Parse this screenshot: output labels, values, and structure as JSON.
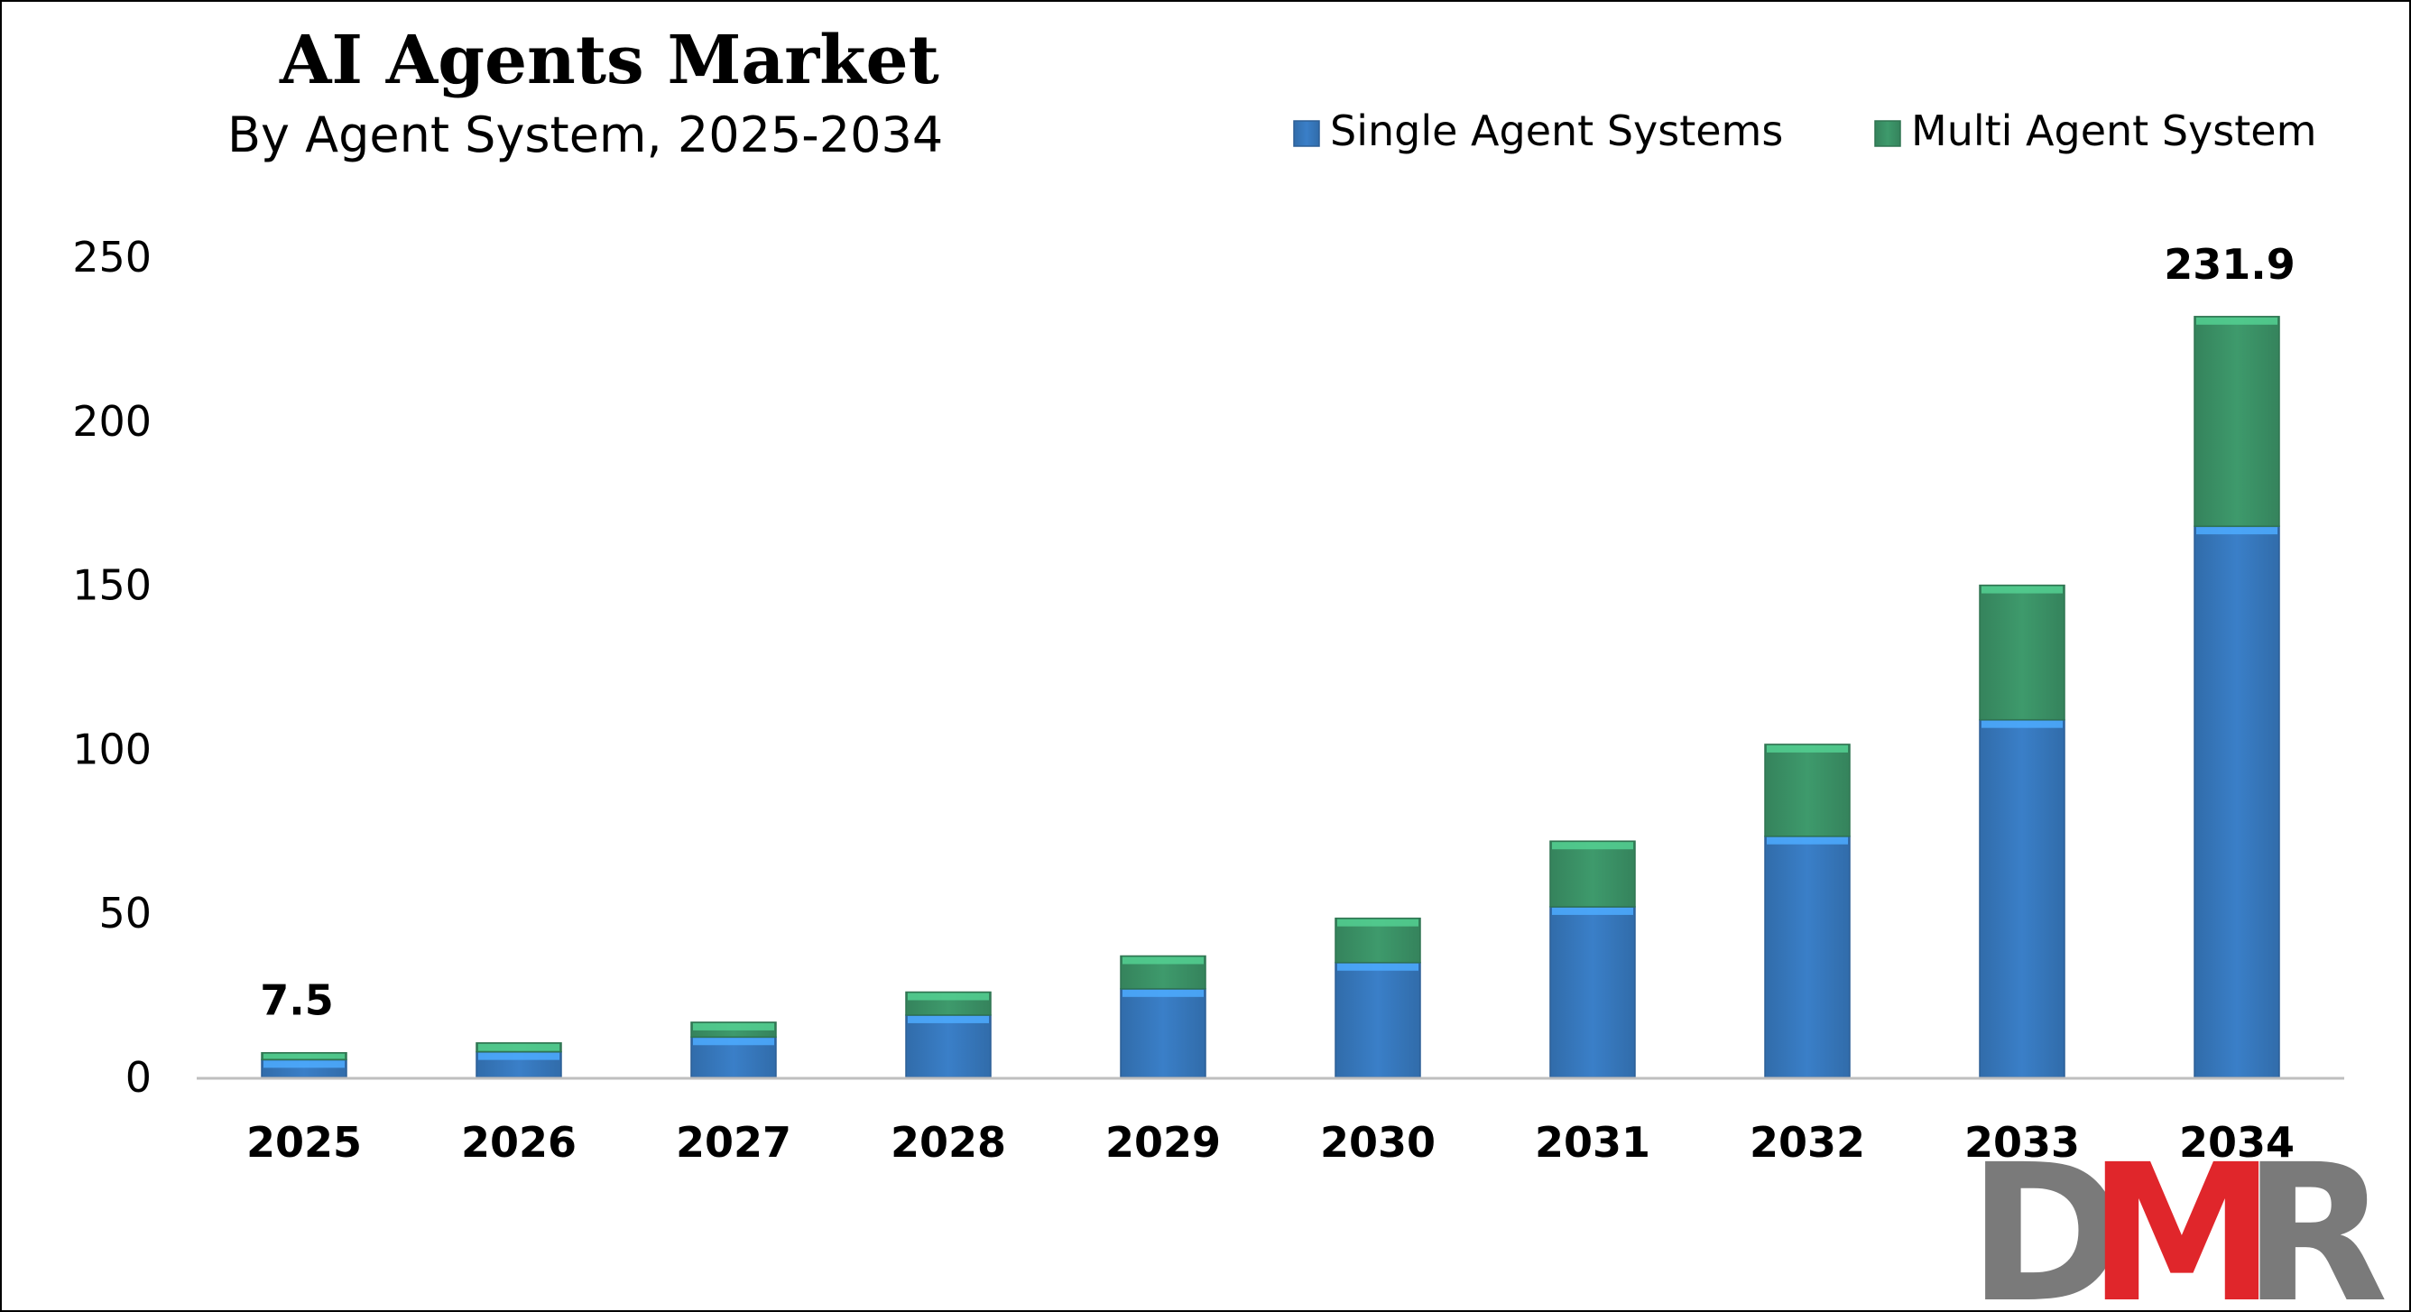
{
  "chart_data": {
    "type": "bar",
    "stacked": true,
    "title": "AI Agents Market",
    "subtitle": "By Agent System, 2025-2034",
    "categories": [
      "2025",
      "2026",
      "2027",
      "2028",
      "2029",
      "2030",
      "2031",
      "2032",
      "2033",
      "2034"
    ],
    "series": [
      {
        "name": "Single Agent Systems",
        "color": "#3a7fc8",
        "values": [
          5.4,
          7.8,
          12.3,
          19.0,
          27.0,
          35.0,
          52.0,
          73.5,
          109.0,
          168.0
        ]
      },
      {
        "name": "Multi Agent System",
        "color": "#3e9a6c",
        "values": [
          2.1,
          2.7,
          4.5,
          7.0,
          10.0,
          13.5,
          20.0,
          28.0,
          41.0,
          63.9
        ]
      }
    ],
    "data_labels": [
      {
        "category": "2025",
        "text": "7.5"
      },
      {
        "category": "2034",
        "text": "231.9"
      }
    ],
    "yticks": [
      0,
      50,
      100,
      150,
      200,
      250
    ],
    "ylim": [
      0,
      250
    ],
    "xlabel": "",
    "ylabel": "",
    "grid": false,
    "legend_position": "top-right"
  },
  "logo": {
    "text": "DMR",
    "colors": [
      "#7a7a7a",
      "#e0262b",
      "#7a7a7a"
    ]
  }
}
